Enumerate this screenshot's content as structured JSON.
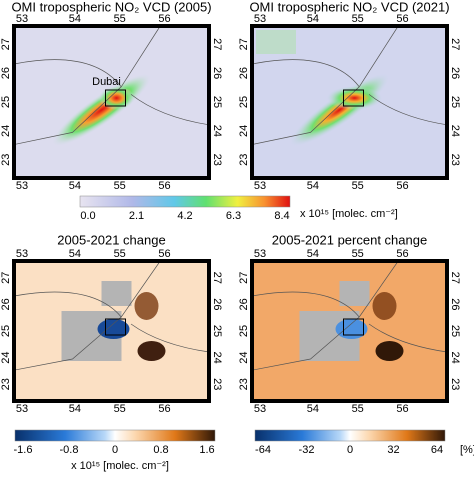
{
  "panels": [
    {
      "title": "OMI tropospheric NO₂ VCD (2005)",
      "label": "Dubai",
      "x_ticks": [
        "53",
        "54",
        "55",
        "56"
      ],
      "y_ticks": [
        "27",
        "26",
        "25",
        "24",
        "23"
      ]
    },
    {
      "title": "OMI tropospheric NO₂ VCD (2021)",
      "x_ticks": [
        "53",
        "54",
        "55",
        "56"
      ],
      "y_ticks": [
        "27",
        "26",
        "25",
        "24",
        "23"
      ]
    },
    {
      "title": "2005-2021 change",
      "x_ticks": [
        "53",
        "54",
        "55",
        "56"
      ],
      "y_ticks": [
        "27",
        "26",
        "25",
        "24",
        "23"
      ]
    },
    {
      "title": "2005-2021 percent change",
      "x_ticks": [
        "53",
        "54",
        "55",
        "56"
      ],
      "y_ticks": [
        "27",
        "26",
        "25",
        "24",
        "23"
      ]
    }
  ],
  "colorbar_vcd": {
    "ticks": [
      "0.0",
      "2.1",
      "4.2",
      "6.3",
      "8.4"
    ],
    "unit": "x 10¹⁵ [molec. cm⁻²]"
  },
  "colorbar_change": {
    "ticks": [
      "-1.6",
      "-0.8",
      "0",
      "0.8",
      "1.6"
    ],
    "unit": "x 10¹⁵ [molec. cm⁻²]"
  },
  "colorbar_percent": {
    "ticks": [
      "-64",
      "-32",
      "0",
      "32",
      "64"
    ],
    "unit": "[%]"
  }
}
